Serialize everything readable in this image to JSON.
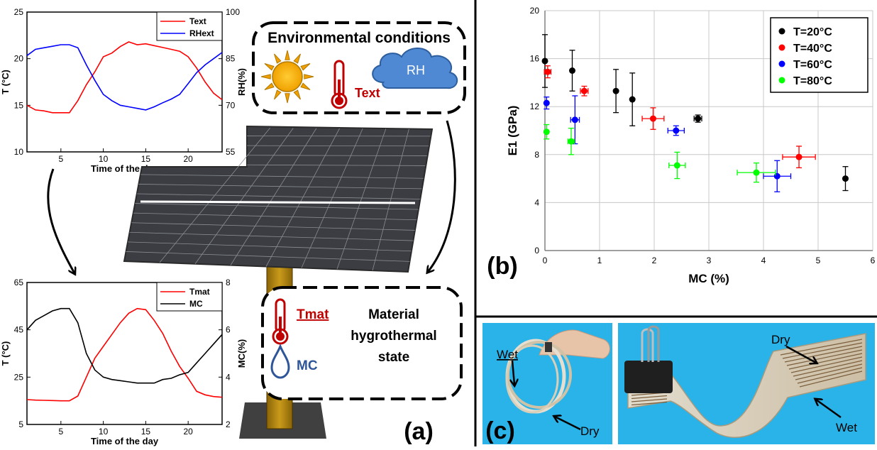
{
  "panel_a": {
    "label": "(a)",
    "env_box": {
      "title": "Environmental conditions",
      "rh": "RH",
      "text": "Text"
    },
    "mat_box": {
      "tmat": "Tmat",
      "mc": "MC",
      "line1": "Material",
      "line2": "hygrothermal",
      "line3": "state"
    }
  },
  "panel_b": {
    "label": "(b)"
  },
  "panel_c": {
    "label": "(c)",
    "wet1": "Wet",
    "dry1": "Dry",
    "dry2": "Dry",
    "wet2": "Wet"
  },
  "colors": {
    "red": "#ff0000",
    "blue": "#0000ff",
    "black": "#000000",
    "green": "#00ff00",
    "red_text": "#c00000",
    "mc_blue": "#2e5597"
  },
  "chart_data": [
    {
      "type": "line",
      "xlabel": "Time of the day",
      "ylabel": "T (°C)",
      "y2label": "RH(%)",
      "xlim": [
        1,
        24
      ],
      "ylim": [
        10,
        25
      ],
      "y2lim": [
        55,
        100
      ],
      "xticks": [
        "5",
        "10",
        "15",
        "20"
      ],
      "yticks": [
        "10",
        "15",
        "20",
        "25"
      ],
      "y2ticks": [
        "55",
        "70",
        "85",
        "100"
      ],
      "legend": "top-right",
      "series": [
        {
          "name": "Text",
          "axis": "left",
          "color": "#ff0000",
          "x": [
            1,
            2,
            3,
            4,
            5,
            6,
            7,
            8,
            9,
            10,
            11,
            12,
            13,
            14,
            15,
            16,
            17,
            18,
            19,
            20,
            21,
            22,
            23,
            24
          ],
          "y": [
            15.0,
            14.5,
            14.4,
            14.2,
            14.2,
            14.2,
            15.5,
            17.2,
            18.6,
            20.2,
            20.6,
            21.3,
            21.8,
            21.5,
            21.6,
            21.4,
            21.2,
            21.0,
            20.8,
            20.2,
            19.0,
            17.5,
            16.3,
            15.6
          ]
        },
        {
          "name": "RHext",
          "axis": "right",
          "color": "#0000ff",
          "x": [
            1,
            2,
            3,
            4,
            5,
            6,
            7,
            8,
            9,
            10,
            11,
            12,
            13,
            14,
            15,
            16,
            17,
            18,
            19,
            20,
            21,
            22,
            23,
            24
          ],
          "y": [
            86,
            88,
            88.5,
            89,
            89.5,
            89.5,
            88.5,
            83,
            78,
            73.5,
            71.5,
            70,
            69.5,
            69,
            68.5,
            69.5,
            70.8,
            72,
            73.5,
            77,
            80.5,
            83,
            85,
            87
          ]
        }
      ]
    },
    {
      "type": "line",
      "xlabel": "Time of the day",
      "ylabel": "T (°C)",
      "y2label": "MC(%)",
      "xlim": [
        1,
        24
      ],
      "ylim": [
        5,
        65
      ],
      "y2lim": [
        2,
        8
      ],
      "xticks": [
        "5",
        "10",
        "15",
        "20"
      ],
      "yticks": [
        "5",
        "25",
        "45",
        "65"
      ],
      "y2ticks": [
        "2",
        "4",
        "6",
        "8"
      ],
      "legend": "top-right",
      "series": [
        {
          "name": "Tmat",
          "axis": "left",
          "color": "#ff0000",
          "x": [
            1,
            2,
            3,
            4,
            5,
            6,
            7,
            8,
            9,
            10,
            11,
            12,
            13,
            14,
            15,
            16,
            17,
            18,
            19,
            20,
            21,
            22,
            23,
            24
          ],
          "y": [
            15.5,
            15.3,
            15.2,
            15.1,
            15.0,
            15.0,
            17.0,
            25.0,
            33.0,
            38.0,
            43.0,
            48.0,
            52.0,
            54.0,
            53.5,
            49.0,
            43.5,
            36.0,
            29.5,
            24.5,
            19.0,
            17.5,
            16.8,
            16.5
          ]
        },
        {
          "name": "MC",
          "axis": "right",
          "color": "#000000",
          "x": [
            1,
            2,
            3,
            4,
            5,
            6,
            7,
            8,
            9,
            10,
            11,
            12,
            13,
            14,
            15,
            16,
            17,
            18,
            19,
            20,
            21,
            22,
            23,
            24
          ],
          "y": [
            6.0,
            6.4,
            6.6,
            6.8,
            6.9,
            6.9,
            6.3,
            5.0,
            4.3,
            4.0,
            3.9,
            3.85,
            3.8,
            3.75,
            3.75,
            3.75,
            3.9,
            3.95,
            4.1,
            4.2,
            4.6,
            5.0,
            5.4,
            5.8
          ]
        }
      ]
    },
    {
      "type": "scatter",
      "xlabel": "MC (%)",
      "ylabel": "E1 (GPa)",
      "xlim": [
        0,
        6
      ],
      "ylim": [
        0,
        20
      ],
      "xticks": [
        "0",
        "1",
        "2",
        "3",
        "4",
        "5",
        "6"
      ],
      "yticks": [
        "0",
        "4",
        "8",
        "12",
        "16",
        "20"
      ],
      "grid": true,
      "legend": "top-right",
      "series": [
        {
          "name": "T=20°C",
          "color": "#000000",
          "points": [
            {
              "x": 0.0,
              "y": 15.8,
              "ey": 2.2,
              "ex": 0
            },
            {
              "x": 0.5,
              "y": 15.0,
              "ey": 1.7,
              "ex": 0
            },
            {
              "x": 1.3,
              "y": 13.3,
              "ey": 1.8,
              "ex": 0
            },
            {
              "x": 1.6,
              "y": 12.6,
              "ey": 2.2,
              "ex": 0
            },
            {
              "x": 2.8,
              "y": 11.0,
              "ey": 0.3,
              "ex": 0.07
            },
            {
              "x": 5.5,
              "y": 6.0,
              "ey": 1.0,
              "ex": 0
            }
          ]
        },
        {
          "name": "T=40°C",
          "color": "#ff0000",
          "points": [
            {
              "x": 0.05,
              "y": 14.9,
              "ey": 0.5,
              "ex": 0.06
            },
            {
              "x": 0.72,
              "y": 13.3,
              "ey": 0.4,
              "ex": 0.07
            },
            {
              "x": 1.98,
              "y": 11.0,
              "ey": 0.9,
              "ex": 0.2
            },
            {
              "x": 4.65,
              "y": 7.8,
              "ey": 0.9,
              "ex": 0.3
            }
          ]
        },
        {
          "name": "T=60°C",
          "color": "#0000ff",
          "points": [
            {
              "x": 0.03,
              "y": 12.3,
              "ey": 0.5,
              "ex": 0
            },
            {
              "x": 0.55,
              "y": 10.9,
              "ey": 2.0,
              "ex": 0.08
            },
            {
              "x": 2.4,
              "y": 10.0,
              "ey": 0.4,
              "ex": 0.15
            },
            {
              "x": 4.25,
              "y": 6.2,
              "ey": 1.3,
              "ex": 0.25
            }
          ]
        },
        {
          "name": "T=80°C",
          "color": "#00ff00",
          "points": [
            {
              "x": 0.03,
              "y": 9.9,
              "ey": 0.6,
              "ex": 0
            },
            {
              "x": 0.48,
              "y": 9.1,
              "ey": 1.1,
              "ex": 0.06
            },
            {
              "x": 2.42,
              "y": 7.1,
              "ey": 1.1,
              "ex": 0.15
            },
            {
              "x": 3.87,
              "y": 6.5,
              "ey": 0.8,
              "ex": 0.35
            }
          ]
        }
      ]
    }
  ]
}
